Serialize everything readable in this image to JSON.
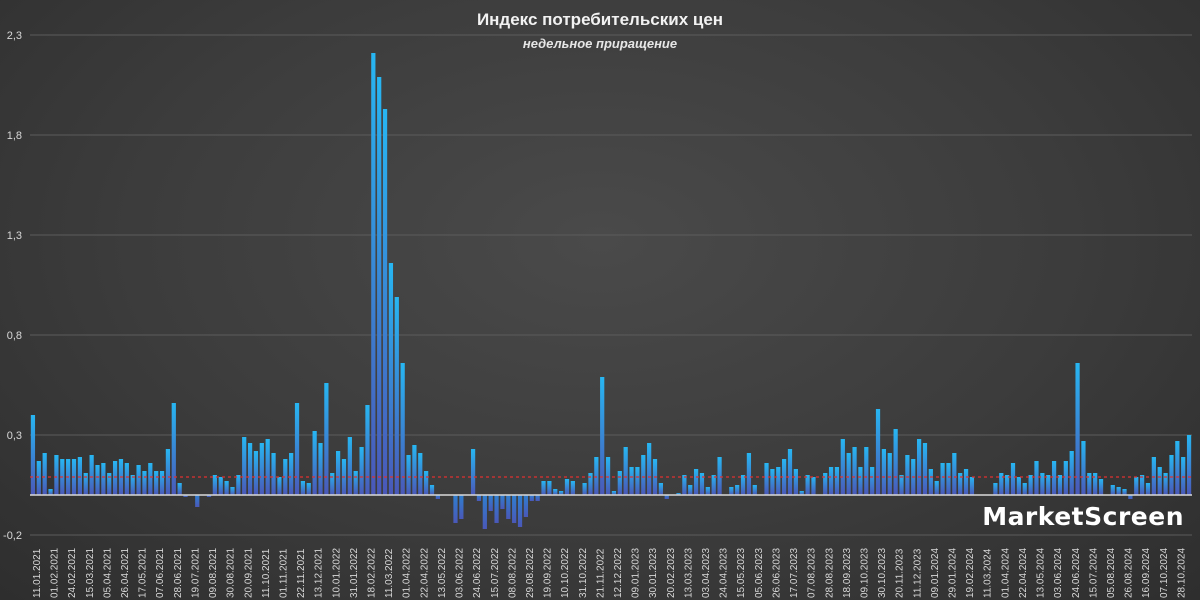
{
  "chart_data": {
    "type": "bar",
    "title": "Индекс потребительских цен",
    "subtitle": "недельное приращение",
    "xlabel": "",
    "ylabel": "",
    "ylim": [
      -0.2,
      2.3
    ],
    "yticks": [
      "-0,2",
      "0,3",
      "0,8",
      "1,3",
      "1,8",
      "2,3"
    ],
    "ytick_values": [
      -0.2,
      0.3,
      0.8,
      1.3,
      1.8,
      2.3
    ],
    "x_tick_labels": [
      "11.01.2021",
      "01.02.2021",
      "24.02.2021",
      "15.03.2021",
      "05.04.2021",
      "26.04.2021",
      "17.05.2021",
      "07.06.2021",
      "28.06.2021",
      "19.07.2021",
      "09.08.2021",
      "30.08.2021",
      "20.09.2021",
      "11.10.2021",
      "01.11.2021",
      "22.11.2021",
      "13.12.2021",
      "10.01.2022",
      "31.01.2022",
      "18.02.2022",
      "11.03.2022",
      "01.04.2022",
      "22.04.2022",
      "13.05.2022",
      "03.06.2022",
      "24.06.2022",
      "15.07.2022",
      "08.08.2022",
      "29.08.2022",
      "19.09.2022",
      "10.10.2022",
      "31.10.2022",
      "21.11.2022",
      "12.12.2022",
      "09.01.2023",
      "30.01.2023",
      "20.02.2023",
      "13.03.2023",
      "03.04.2023",
      "24.04.2023",
      "15.05.2023",
      "05.06.2023",
      "26.06.2023",
      "17.07.2023",
      "07.08.2023",
      "28.08.2023",
      "18.09.2023",
      "09.10.2023",
      "30.10.2023",
      "20.11.2023",
      "11.12.2023",
      "09.01.2024",
      "29.01.2024",
      "19.02.2024",
      "11.03.2024",
      "01.04.2024",
      "22.04.2024",
      "13.05.2024",
      "03.06.2024",
      "24.06.2024",
      "15.07.2024",
      "05.08.2024",
      "26.08.2024",
      "16.09.2024",
      "07.10.2024",
      "28.10.2024"
    ],
    "reference_line": 0.09,
    "values": [
      0.4,
      0.17,
      0.21,
      0.03,
      0.2,
      0.18,
      0.18,
      0.18,
      0.19,
      0.11,
      0.2,
      0.15,
      0.16,
      0.11,
      0.17,
      0.18,
      0.16,
      0.1,
      0.15,
      0.12,
      0.16,
      0.12,
      0.12,
      0.23,
      0.46,
      0.06,
      -0.01,
      0.0,
      -0.06,
      0.0,
      -0.01,
      0.1,
      0.09,
      0.07,
      0.04,
      0.1,
      0.29,
      0.26,
      0.22,
      0.26,
      0.28,
      0.21,
      0.09,
      0.18,
      0.21,
      0.46,
      0.07,
      0.06,
      0.32,
      0.26,
      0.56,
      0.11,
      0.22,
      0.18,
      0.29,
      0.12,
      0.24,
      0.45,
      2.21,
      2.09,
      1.93,
      1.16,
      0.99,
      0.66,
      0.2,
      0.25,
      0.21,
      0.12,
      0.05,
      -0.02,
      0.0,
      0.0,
      -0.14,
      -0.12,
      0.0,
      0.23,
      -0.03,
      -0.17,
      -0.08,
      -0.14,
      -0.07,
      -0.12,
      -0.14,
      -0.16,
      -0.11,
      -0.03,
      -0.03,
      0.07,
      0.07,
      0.03,
      0.02,
      0.08,
      0.07,
      0.0,
      0.06,
      0.11,
      0.19,
      0.59,
      0.19,
      0.02,
      0.12,
      0.24,
      0.14,
      0.14,
      0.2,
      0.26,
      0.18,
      0.06,
      -0.02,
      0.0,
      0.01,
      0.1,
      0.05,
      0.13,
      0.11,
      0.04,
      0.1,
      0.19,
      0.0,
      0.04,
      0.05,
      0.1,
      0.21,
      0.05,
      0.0,
      0.16,
      0.13,
      0.14,
      0.18,
      0.23,
      0.13,
      0.02,
      0.1,
      0.09,
      0.0,
      0.11,
      0.14,
      0.14,
      0.28,
      0.21,
      0.24,
      0.14,
      0.24,
      0.14,
      0.43,
      0.23,
      0.21,
      0.33,
      0.1,
      0.2,
      0.18,
      0.28,
      0.26,
      0.13,
      0.07,
      0.16,
      0.16,
      0.21,
      0.11,
      0.13,
      0.09,
      0.0,
      0.0,
      0.0,
      0.06,
      0.11,
      0.1,
      0.16,
      0.09,
      0.06,
      0.1,
      0.17,
      0.11,
      0.1,
      0.17,
      0.1,
      0.17,
      0.22,
      0.66,
      0.27,
      0.11,
      0.11,
      0.08,
      0.0,
      0.05,
      0.04,
      0.03,
      -0.02,
      0.09,
      0.1,
      0.06,
      0.19,
      0.14,
      0.11,
      0.2,
      0.27,
      0.19,
      0.3
    ]
  },
  "watermark": "MarketScreen"
}
